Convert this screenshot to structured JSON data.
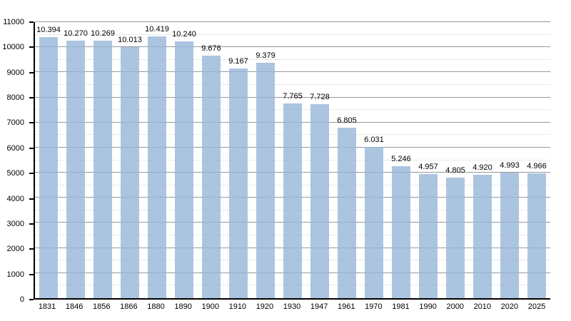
{
  "chart_data": {
    "type": "bar",
    "title": "",
    "xlabel": "",
    "ylabel": "",
    "categories": [
      "1831",
      "1846",
      "1856",
      "1866",
      "1880",
      "1890",
      "1900",
      "1910",
      "1920",
      "1930",
      "1947",
      "1961",
      "1970",
      "1981",
      "1990",
      "2000",
      "2010",
      "2020",
      "2025"
    ],
    "values": [
      10394,
      10270,
      10269,
      10013,
      10419,
      10240,
      9676,
      9167,
      9379,
      7765,
      7728,
      6805,
      6031,
      5246,
      4957,
      4805,
      4920,
      4993,
      4966
    ],
    "value_labels": [
      "10.394",
      "10.270",
      "10.269",
      "10.013",
      "10.419",
      "10.240",
      "9.676",
      "9.167",
      "9.379",
      "7.765",
      "7.728",
      "6.805",
      "6.031",
      "5.246",
      "4.957",
      "4.805",
      "4.920",
      "4.993",
      "4.966"
    ],
    "ylim": [
      0,
      11000
    ],
    "ytick_step": 1000,
    "yminor_step": 500,
    "ytick_labels": [
      "0",
      "1000",
      "2000",
      "3000",
      "4000",
      "5000",
      "6000",
      "7000",
      "8000",
      "9000",
      "10000",
      "11000"
    ],
    "grid": "on",
    "legend": "none",
    "colors": {
      "bar_fill": "#96B7DA",
      "bar_fill_opacity": 0.8,
      "grid_major": "#999999",
      "grid_minor": "#EAEAEA",
      "axis": "#000000",
      "text": "#000000",
      "background": "#FFFFFF"
    }
  }
}
